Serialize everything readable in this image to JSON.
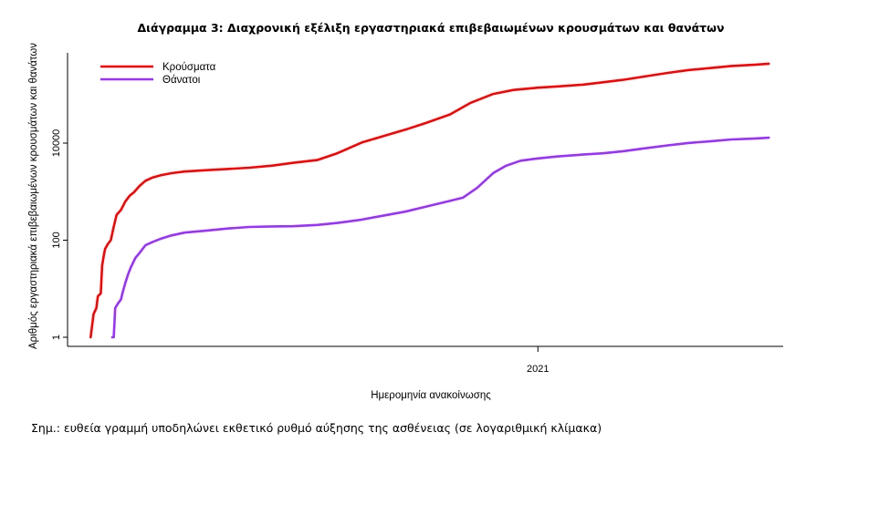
{
  "chart_data": {
    "type": "line",
    "title": "Διάγραμμα 3: Διαχρονική εξέλιξη εργαστηριακά επιβεβαιωμένων κρουσμάτων και θανάτων",
    "xlabel": "Ημερομηνία ανακοίνωσης",
    "ylabel": "Αριθμός εργαστηριακά επιβεβαιωμένων κρουσμάτων και θανάτων",
    "y_scale": "log",
    "ylim": [
      1,
      800000
    ],
    "xlim": [
      "2020-02-10",
      "2021-06-20"
    ],
    "yticks": [
      {
        "value": 1,
        "label": "1"
      },
      {
        "value": 100,
        "label": "100"
      },
      {
        "value": 10000,
        "label": "10000"
      }
    ],
    "xticks": [
      {
        "value": "2021-01-01",
        "label": "2021"
      }
    ],
    "grid": false,
    "legend_position": "top-left",
    "series": [
      {
        "name": "Κρούσματα",
        "color": "#ff0000",
        "points": [
          [
            "2020-02-26",
            1
          ],
          [
            "2020-02-28",
            3
          ],
          [
            "2020-03-01",
            4
          ],
          [
            "2020-03-02",
            7
          ],
          [
            "2020-03-04",
            8
          ],
          [
            "2020-03-05",
            30
          ],
          [
            "2020-03-06",
            46
          ],
          [
            "2020-03-07",
            66
          ],
          [
            "2020-03-09",
            84
          ],
          [
            "2020-03-11",
            100
          ],
          [
            "2020-03-13",
            190
          ],
          [
            "2020-03-15",
            331
          ],
          [
            "2020-03-18",
            418
          ],
          [
            "2020-03-21",
            624
          ],
          [
            "2020-03-24",
            821
          ],
          [
            "2020-03-27",
            966
          ],
          [
            "2020-03-31",
            1314
          ],
          [
            "2020-04-04",
            1673
          ],
          [
            "2020-04-09",
            1955
          ],
          [
            "2020-04-15",
            2192
          ],
          [
            "2020-04-22",
            2401
          ],
          [
            "2020-05-01",
            2591
          ],
          [
            "2020-05-15",
            2760
          ],
          [
            "2020-06-01",
            2937
          ],
          [
            "2020-06-15",
            3112
          ],
          [
            "2020-07-01",
            3432
          ],
          [
            "2020-07-15",
            3910
          ],
          [
            "2020-08-01",
            4477
          ],
          [
            "2020-08-15",
            6177
          ],
          [
            "2020-09-01",
            10317
          ],
          [
            "2020-09-15",
            13730
          ],
          [
            "2020-10-01",
            18886
          ],
          [
            "2020-10-15",
            25802
          ],
          [
            "2020-11-01",
            38952
          ],
          [
            "2020-11-15",
            66637
          ],
          [
            "2020-12-01",
            103034
          ],
          [
            "2020-12-15",
            124568
          ],
          [
            "2021-01-01",
            138850
          ],
          [
            "2021-01-15",
            147144
          ],
          [
            "2021-02-01",
            160159
          ],
          [
            "2021-02-15",
            178609
          ],
          [
            "2021-03-01",
            200925
          ],
          [
            "2021-03-15",
            233945
          ],
          [
            "2021-04-01",
            279537
          ],
          [
            "2021-04-15",
            318941
          ],
          [
            "2021-05-01",
            351966
          ],
          [
            "2021-05-15",
            387778
          ],
          [
            "2021-06-01",
            413547
          ],
          [
            "2021-06-10",
            433000
          ]
        ]
      },
      {
        "name": "Θάνατοι",
        "color": "#9b30ff",
        "points": [
          [
            "2020-03-12",
            1
          ],
          [
            "2020-03-13",
            1
          ],
          [
            "2020-03-14",
            4
          ],
          [
            "2020-03-16",
            5
          ],
          [
            "2020-03-18",
            6
          ],
          [
            "2020-03-19",
            8
          ],
          [
            "2020-03-21",
            13
          ],
          [
            "2020-03-23",
            20
          ],
          [
            "2020-03-25",
            28
          ],
          [
            "2020-03-28",
            43
          ],
          [
            "2020-03-31",
            55
          ],
          [
            "2020-04-04",
            79
          ],
          [
            "2020-04-09",
            92
          ],
          [
            "2020-04-15",
            108
          ],
          [
            "2020-04-22",
            125
          ],
          [
            "2020-05-01",
            143
          ],
          [
            "2020-05-15",
            156
          ],
          [
            "2020-06-01",
            175
          ],
          [
            "2020-06-15",
            187
          ],
          [
            "2020-07-01",
            192
          ],
          [
            "2020-07-15",
            194
          ],
          [
            "2020-08-01",
            206
          ],
          [
            "2020-08-15",
            226
          ],
          [
            "2020-09-01",
            266
          ],
          [
            "2020-09-15",
            317
          ],
          [
            "2020-10-01",
            387
          ],
          [
            "2020-10-15",
            486
          ],
          [
            "2020-11-01",
            646
          ],
          [
            "2020-11-10",
            750
          ],
          [
            "2020-11-20",
            1207
          ],
          [
            "2020-12-01",
            2406
          ],
          [
            "2020-12-10",
            3427
          ],
          [
            "2020-12-20",
            4340
          ],
          [
            "2021-01-01",
            4838
          ],
          [
            "2021-01-15",
            5320
          ],
          [
            "2021-02-01",
            5797
          ],
          [
            "2021-02-15",
            6161
          ],
          [
            "2021-03-01",
            6797
          ],
          [
            "2021-03-15",
            7739
          ],
          [
            "2021-04-01",
            8982
          ],
          [
            "2021-04-15",
            10039
          ],
          [
            "2021-05-01",
            10966
          ],
          [
            "2021-05-15",
            11906
          ],
          [
            "2021-06-01",
            12443
          ],
          [
            "2021-06-10",
            12900
          ]
        ]
      }
    ]
  },
  "note": "Σημ.: ευθεία γραμμή υποδηλώνει εκθετικό ρυθμό αύξησης της ασθένειας (σε λογαριθμική κλίμακα)"
}
